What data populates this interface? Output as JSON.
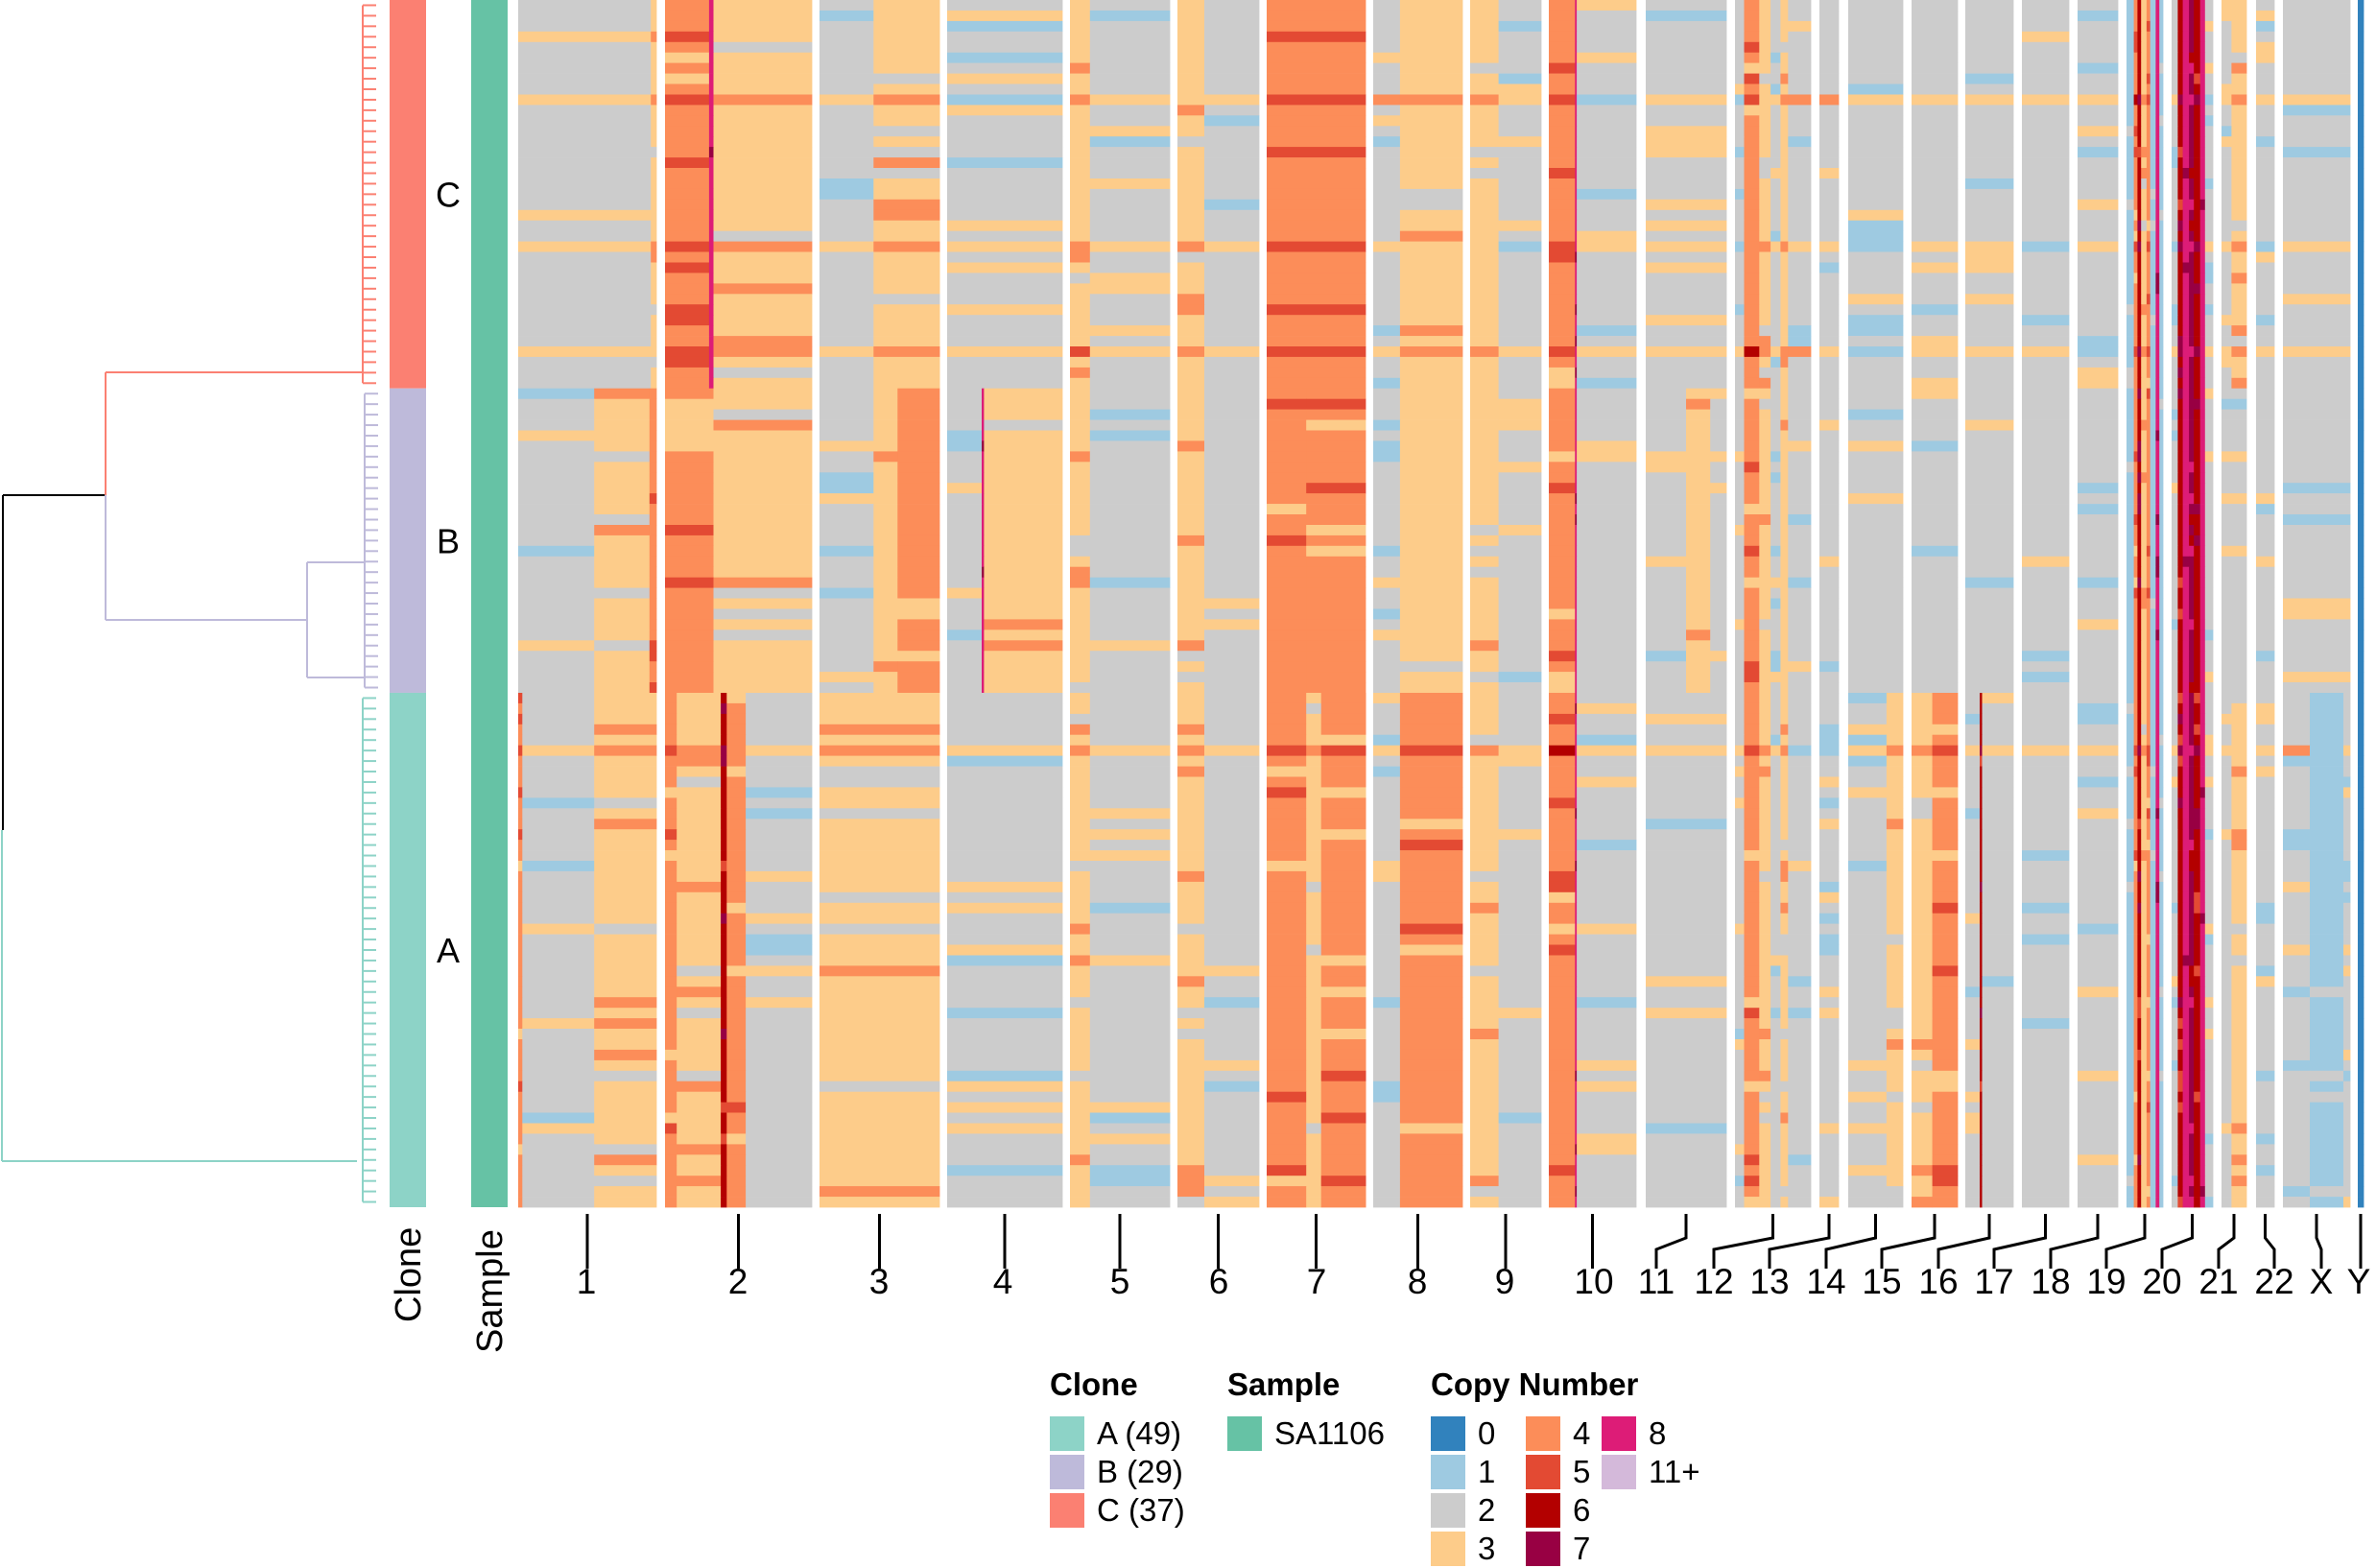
{
  "chart_data": {
    "type": "heatmap",
    "row_annotations": {
      "clone_label": "Clone",
      "sample_label": "Sample"
    },
    "clones": [
      {
        "label": "C",
        "count": 37,
        "color": "#fb8072"
      },
      {
        "label": "B",
        "count": 29,
        "color": "#bebada"
      },
      {
        "label": "A",
        "count": 49,
        "color": "#8dd3c7"
      }
    ],
    "sample": {
      "label": "SA1106",
      "color": "#66c2a5"
    },
    "copy_number_colors": {
      "0": "#3182bd",
      "1": "#9ecae1",
      "2": "#cccccc",
      "3": "#fdcc8a",
      "4": "#fc8d59",
      "5": "#e34a33",
      "6": "#b30000",
      "7": "#980043",
      "8": "#dd1c77",
      "11+": "#d4b9da"
    },
    "chromosomes": [
      {
        "name": "1",
        "profile": {
          "C": [
            [
              0.96,
              2
            ],
            [
              0.04,
              3
            ]
          ],
          "B": [
            [
              0.55,
              2
            ],
            [
              0.4,
              3
            ],
            [
              0.05,
              4
            ]
          ],
          "A": [
            [
              0.03,
              4
            ],
            [
              0.52,
              2
            ],
            [
              0.45,
              3
            ]
          ]
        }
      },
      {
        "name": "2",
        "profile": {
          "C": [
            [
              0.3,
              4
            ],
            [
              0.03,
              8
            ],
            [
              0.67,
              3
            ]
          ],
          "B": [
            [
              0.33,
              4
            ],
            [
              0.67,
              3
            ]
          ],
          "A": [
            [
              0.08,
              4
            ],
            [
              0.3,
              3
            ],
            [
              0.04,
              6
            ],
            [
              0.13,
              4
            ],
            [
              0.45,
              2
            ]
          ]
        }
      },
      {
        "name": "3",
        "profile": {
          "C": [
            [
              0.45,
              2
            ],
            [
              0.55,
              3
            ]
          ],
          "B": [
            [
              0.45,
              2
            ],
            [
              0.2,
              3
            ],
            [
              0.35,
              4
            ]
          ],
          "A": [
            [
              1,
              3
            ]
          ]
        }
      },
      {
        "name": "4",
        "profile": {
          "C": [
            [
              1,
              2
            ]
          ],
          "B": [
            [
              0.3,
              2
            ],
            [
              0.02,
              8
            ],
            [
              0.68,
              3
            ]
          ],
          "A": [
            [
              1,
              2
            ]
          ]
        }
      },
      {
        "name": "5",
        "profile": {
          "C": [
            [
              0.2,
              3
            ],
            [
              0.8,
              2
            ]
          ],
          "B": [
            [
              0.2,
              3
            ],
            [
              0.8,
              2
            ]
          ],
          "A": [
            [
              0.2,
              3
            ],
            [
              0.8,
              2
            ]
          ]
        }
      },
      {
        "name": "6",
        "profile": {
          "C": [
            [
              0.33,
              3
            ],
            [
              0.67,
              2
            ]
          ],
          "B": [
            [
              0.33,
              3
            ],
            [
              0.67,
              2
            ]
          ],
          "A": [
            [
              0.33,
              3
            ],
            [
              0.67,
              2
            ]
          ]
        }
      },
      {
        "name": "7",
        "profile": {
          "C": [
            [
              1,
              4
            ]
          ],
          "B": [
            [
              0.4,
              4
            ],
            [
              0.6,
              4
            ]
          ],
          "A": [
            [
              0.4,
              4
            ],
            [
              0.15,
              3
            ],
            [
              0.45,
              4
            ]
          ]
        }
      },
      {
        "name": "8",
        "profile": {
          "C": [
            [
              0.3,
              2
            ],
            [
              0.7,
              3
            ]
          ],
          "B": [
            [
              0.3,
              2
            ],
            [
              0.7,
              3
            ]
          ],
          "A": [
            [
              0.3,
              2
            ],
            [
              0.7,
              4
            ]
          ]
        }
      },
      {
        "name": "9",
        "profile": {
          "C": [
            [
              0.4,
              3
            ],
            [
              0.6,
              2
            ]
          ],
          "B": [
            [
              0.4,
              3
            ],
            [
              0.6,
              2
            ]
          ],
          "A": [
            [
              0.4,
              3
            ],
            [
              0.6,
              2
            ]
          ]
        }
      },
      {
        "name": "10",
        "profile": {
          "C": [
            [
              0.3,
              4
            ],
            [
              0.02,
              8
            ],
            [
              0.68,
              2
            ]
          ],
          "B": [
            [
              0.3,
              4
            ],
            [
              0.02,
              8
            ],
            [
              0.68,
              2
            ]
          ],
          "A": [
            [
              0.3,
              4
            ],
            [
              0.02,
              8
            ],
            [
              0.68,
              2
            ]
          ]
        }
      },
      {
        "name": "11",
        "profile": {
          "C": [
            [
              1,
              2
            ]
          ],
          "B": [
            [
              0.5,
              2
            ],
            [
              0.3,
              3
            ],
            [
              0.2,
              2
            ]
          ],
          "A": [
            [
              1,
              2
            ]
          ]
        }
      },
      {
        "name": "12",
        "profile": {
          "C": [
            [
              0.12,
              2
            ],
            [
              0.2,
              4
            ],
            [
              0.15,
              3
            ],
            [
              0.13,
              2
            ],
            [
              0.1,
              3
            ],
            [
              0.3,
              2
            ]
          ],
          "B": [
            [
              0.12,
              2
            ],
            [
              0.2,
              4
            ],
            [
              0.15,
              3
            ],
            [
              0.13,
              2
            ],
            [
              0.1,
              3
            ],
            [
              0.3,
              2
            ]
          ],
          "A": [
            [
              0.12,
              2
            ],
            [
              0.2,
              4
            ],
            [
              0.15,
              3
            ],
            [
              0.13,
              2
            ],
            [
              0.1,
              3
            ],
            [
              0.3,
              2
            ]
          ]
        }
      },
      {
        "name": "13",
        "profile": {
          "C": [
            [
              1,
              2
            ]
          ],
          "B": [
            [
              1,
              2
            ]
          ],
          "A": [
            [
              1,
              2
            ]
          ]
        }
      },
      {
        "name": "14",
        "profile": {
          "C": [
            [
              1,
              2
            ]
          ],
          "B": [
            [
              1,
              2
            ]
          ],
          "A": [
            [
              0.7,
              2
            ],
            [
              0.3,
              3
            ]
          ]
        }
      },
      {
        "name": "15",
        "profile": {
          "C": [
            [
              1,
              2
            ]
          ],
          "B": [
            [
              1,
              2
            ]
          ],
          "A": [
            [
              0.45,
              3
            ],
            [
              0.55,
              4
            ]
          ]
        }
      },
      {
        "name": "16",
        "profile": {
          "C": [
            [
              1,
              2
            ]
          ],
          "B": [
            [
              1,
              2
            ]
          ],
          "A": [
            [
              0.3,
              2
            ],
            [
              0.05,
              6
            ],
            [
              0.65,
              2
            ]
          ]
        }
      },
      {
        "name": "17",
        "profile": {
          "C": [
            [
              1,
              2
            ]
          ],
          "B": [
            [
              1,
              2
            ]
          ],
          "A": [
            [
              1,
              2
            ]
          ]
        }
      },
      {
        "name": "18",
        "profile": {
          "C": [
            [
              1,
              2
            ]
          ],
          "B": [
            [
              1,
              2
            ]
          ],
          "A": [
            [
              1,
              2
            ]
          ]
        }
      },
      {
        "name": "19",
        "profile": {
          "C": [
            [
              0.2,
              1
            ],
            [
              0.1,
              4
            ],
            [
              0.1,
              6
            ],
            [
              0.15,
              3
            ],
            [
              0.1,
              4
            ],
            [
              0.15,
              1
            ],
            [
              0.1,
              8
            ],
            [
              0.1,
              1
            ]
          ],
          "B": [
            [
              0.2,
              1
            ],
            [
              0.1,
              4
            ],
            [
              0.1,
              6
            ],
            [
              0.15,
              3
            ],
            [
              0.1,
              4
            ],
            [
              0.15,
              1
            ],
            [
              0.1,
              8
            ],
            [
              0.1,
              1
            ]
          ],
          "A": [
            [
              0.2,
              1
            ],
            [
              0.1,
              4
            ],
            [
              0.1,
              6
            ],
            [
              0.15,
              3
            ],
            [
              0.1,
              4
            ],
            [
              0.15,
              1
            ],
            [
              0.1,
              8
            ],
            [
              0.1,
              1
            ]
          ]
        }
      },
      {
        "name": "20",
        "profile": {
          "C": [
            [
              0.15,
              2
            ],
            [
              0.12,
              6
            ],
            [
              0.15,
              8
            ],
            [
              0.12,
              7
            ],
            [
              0.15,
              6
            ],
            [
              0.12,
              8
            ],
            [
              0.19,
              2
            ]
          ],
          "B": [
            [
              0.15,
              2
            ],
            [
              0.12,
              6
            ],
            [
              0.15,
              8
            ],
            [
              0.12,
              7
            ],
            [
              0.15,
              6
            ],
            [
              0.12,
              8
            ],
            [
              0.19,
              2
            ]
          ],
          "A": [
            [
              0.15,
              2
            ],
            [
              0.12,
              6
            ],
            [
              0.15,
              8
            ],
            [
              0.12,
              7
            ],
            [
              0.15,
              6
            ],
            [
              0.12,
              8
            ],
            [
              0.19,
              2
            ]
          ]
        }
      },
      {
        "name": "21",
        "profile": {
          "C": [
            [
              0.4,
              2
            ],
            [
              0.6,
              3
            ]
          ],
          "B": [
            [
              1,
              2
            ]
          ],
          "A": [
            [
              0.4,
              2
            ],
            [
              0.6,
              3
            ]
          ]
        }
      },
      {
        "name": "22",
        "profile": {
          "C": [
            [
              1,
              2
            ]
          ],
          "B": [
            [
              1,
              2
            ]
          ],
          "A": [
            [
              1,
              2
            ]
          ]
        }
      },
      {
        "name": "X",
        "profile": {
          "C": [
            [
              1,
              2
            ]
          ],
          "B": [
            [
              1,
              2
            ]
          ],
          "A": [
            [
              0.4,
              2
            ],
            [
              0.5,
              1
            ],
            [
              0.1,
              2
            ]
          ]
        }
      },
      {
        "name": "Y",
        "profile": {
          "C": [
            [
              1,
              0
            ]
          ],
          "B": [
            [
              1,
              0
            ]
          ],
          "A": [
            [
              1,
              0
            ]
          ]
        }
      }
    ]
  },
  "legend": {
    "clone": {
      "title": "Clone",
      "items": [
        {
          "label": "A (49)",
          "color": "#8dd3c7"
        },
        {
          "label": "B (29)",
          "color": "#bebada"
        },
        {
          "label": "C (37)",
          "color": "#fb8072"
        }
      ]
    },
    "sample": {
      "title": "Sample",
      "items": [
        {
          "label": "SA1106",
          "color": "#66c2a5"
        }
      ]
    },
    "copy_number": {
      "title": "Copy Number",
      "items": [
        {
          "label": "0",
          "color": "#3182bd"
        },
        {
          "label": "1",
          "color": "#9ecae1"
        },
        {
          "label": "2",
          "color": "#cccccc"
        },
        {
          "label": "3",
          "color": "#fdcc8a"
        },
        {
          "label": "4",
          "color": "#fc8d59"
        },
        {
          "label": "5",
          "color": "#e34a33"
        },
        {
          "label": "6",
          "color": "#b30000"
        },
        {
          "label": "7",
          "color": "#980043"
        },
        {
          "label": "8",
          "color": "#dd1c77"
        },
        {
          "label": "11+",
          "color": "#d4b9da"
        }
      ]
    }
  }
}
